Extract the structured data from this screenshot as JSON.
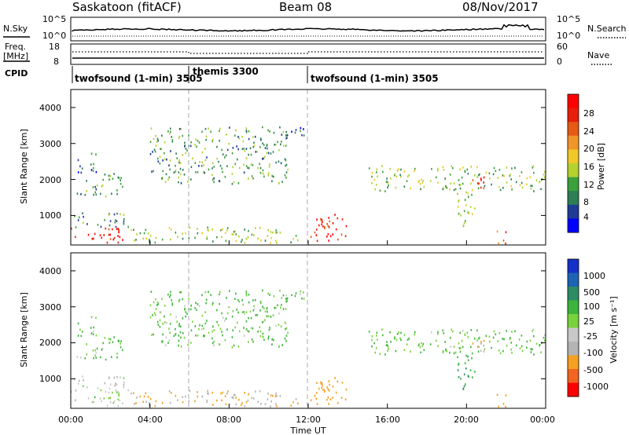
{
  "header": {
    "station": "Saskatoon (fitACF)",
    "beam": "Beam 08",
    "date": "08/Nov/2017"
  },
  "noise_panel": {
    "left_label": "N.Sky",
    "left_ticks": [
      "10^5",
      "10^0"
    ],
    "right_ticks": [
      "10^5",
      "10^0"
    ],
    "right_label": "N.Search"
  },
  "freq_panel": {
    "left_label_1": "Freq.",
    "left_label_2": "[MHz]",
    "left_ticks": [
      "18",
      "8"
    ],
    "right_ticks": [
      "60",
      "0"
    ],
    "right_label": "Nave"
  },
  "cpid_panel": {
    "label": "CPID",
    "modes": [
      "twofsound (1-min) 3505",
      "themis 3300",
      "twofsound (1-min) 3505"
    ]
  },
  "x_axis": {
    "ticks": [
      "00:00",
      "04:00",
      "08:00",
      "12:00",
      "16:00",
      "20:00",
      "00:00"
    ],
    "label": "Time UT"
  },
  "power_panel": {
    "ylabel": "Slant Range [km]",
    "yticks": [
      "4000",
      "3000",
      "2000",
      "1000"
    ],
    "colorbar_label": "Power [dB]",
    "colorbar_ticks": [
      "28",
      "24",
      "20",
      "16",
      "12",
      "8",
      "4"
    ],
    "colors": [
      "#0000ff",
      "#1e3c96",
      "#2e7d55",
      "#3ca03c",
      "#b4d22d",
      "#f0c828",
      "#f09628",
      "#e65a14",
      "#e61e0a",
      "#ff0000"
    ]
  },
  "velocity_panel": {
    "ylabel": "Slant Range [km]",
    "yticks": [
      "4000",
      "3000",
      "2000",
      "1000"
    ],
    "colorbar_label": "Velocity [m s⁻¹]",
    "colorbar_ticks": [
      "1000",
      "500",
      "100",
      "25",
      "-25",
      "-100",
      "-500",
      "-1000"
    ],
    "colors": [
      "#ff0000",
      "#f26420",
      "#f5a020",
      "#b4b4b4",
      "#c8c8c8",
      "#78d23c",
      "#3cb43c",
      "#2d8c64",
      "#1e64b4",
      "#1432c8"
    ]
  },
  "chart_data": {
    "type": "heatmap",
    "title": "Saskatoon (fitACF) Beam 08 08/Nov/2017",
    "xlabel": "Time UT",
    "ylabel": "Slant Range [km]",
    "x_range_hours": [
      0,
      24
    ],
    "y_range_km": [
      180,
      4500
    ],
    "regions": [
      {
        "t0": 0.0,
        "t1": 2.6,
        "r0": 250,
        "r1": 700,
        "power": 28,
        "velocity": 0
      },
      {
        "t0": 0.0,
        "t1": 3.0,
        "r0": 700,
        "r1": 1100,
        "power": 8,
        "velocity": -25
      },
      {
        "t0": 0.3,
        "t1": 2.6,
        "r0": 1550,
        "r1": 2200,
        "power": 10,
        "velocity": 25
      },
      {
        "t0": 0.3,
        "t1": 1.3,
        "r0": 2200,
        "r1": 2800,
        "power": 6,
        "velocity": 25
      },
      {
        "t0": 2.9,
        "t1": 11.5,
        "r0": 250,
        "r1": 700,
        "power": 12,
        "velocity": -100
      },
      {
        "t0": 4.0,
        "t1": 11.0,
        "r0": 1900,
        "r1": 3500,
        "power": 10,
        "velocity": 25
      },
      {
        "t0": 10.4,
        "t1": 11.8,
        "r0": 3100,
        "r1": 3500,
        "power": 6,
        "velocity": 25
      },
      {
        "t0": 12.1,
        "t1": 14.0,
        "r0": 300,
        "r1": 1100,
        "power": 26,
        "velocity": -250
      },
      {
        "t0": 15.0,
        "t1": 24.0,
        "r0": 1700,
        "r1": 2400,
        "power": 12,
        "velocity": 25
      },
      {
        "t0": 19.5,
        "t1": 20.5,
        "r0": 700,
        "r1": 1700,
        "power": 14,
        "velocity": 100
      },
      {
        "t0": 20.2,
        "t1": 21.0,
        "r0": 1700,
        "r1": 2200,
        "power": 26,
        "velocity": -100
      },
      {
        "t0": 21.3,
        "t1": 22.0,
        "r0": 250,
        "r1": 600,
        "power": 22,
        "velocity": -300
      }
    ]
  }
}
